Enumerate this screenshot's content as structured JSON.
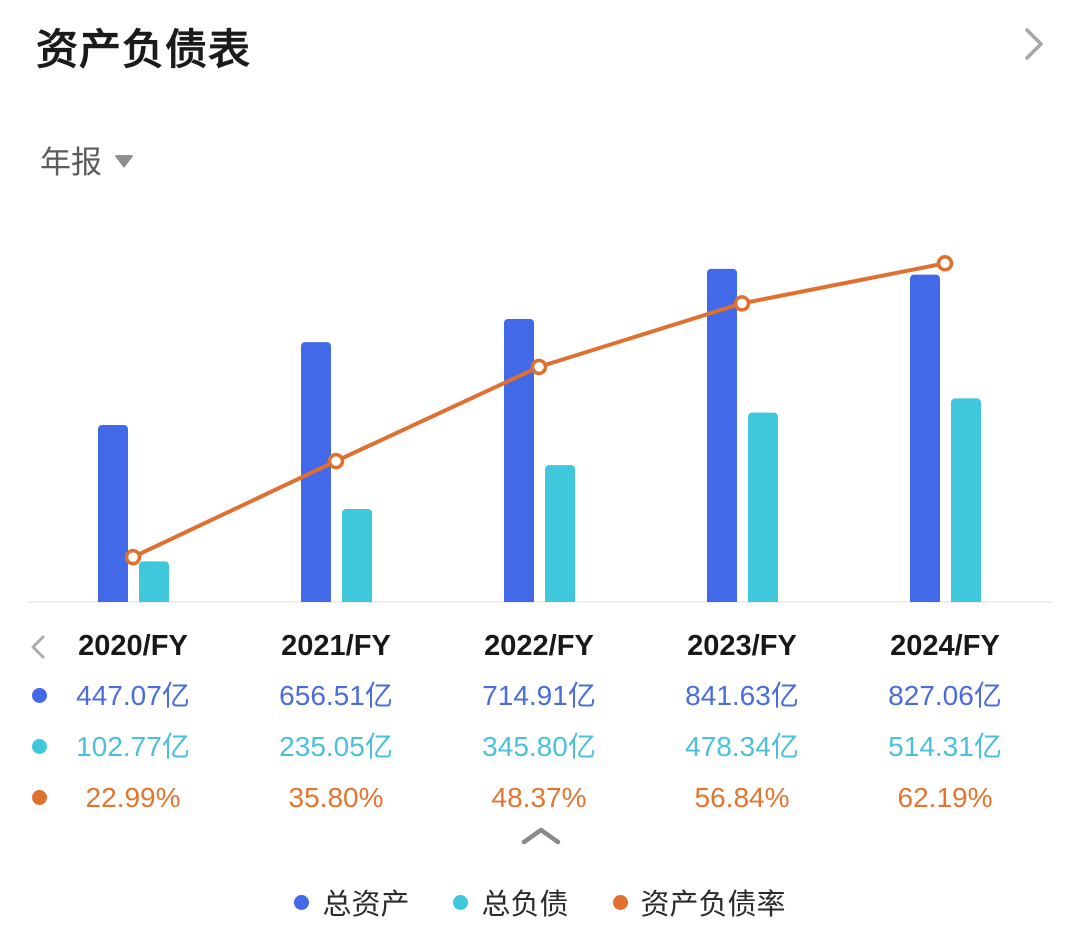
{
  "header": {
    "title": "资产负债表",
    "detail_icon": "chevron-right"
  },
  "period": {
    "label": "年报",
    "dropdown_icon": "triangle-down"
  },
  "table": {
    "prev_icon": "chevron-left",
    "collapse_icon": "chevron-up",
    "year_color": "#181818"
  },
  "colors": {
    "background": "#ffffff",
    "title_text": "#1b1b1b",
    "period_text": "#5c5c5c",
    "icon_gray": "#a6a6a6",
    "collapse_gray": "#8a8a8a",
    "baseline": "#eaeaea",
    "legend_text": "#2b2b2b"
  },
  "chart_data": {
    "type": "combo-bar-line",
    "title": "",
    "xlabel": "",
    "ylabel": "",
    "grid": false,
    "legend_position": "bottom",
    "categories": [
      "2020/FY",
      "2021/FY",
      "2022/FY",
      "2023/FY",
      "2024/FY"
    ],
    "series": [
      {
        "name": "总资产",
        "type": "bar",
        "color": "#4169E8",
        "value_color": "#4A6CDE",
        "values": [
          447.07,
          656.51,
          714.91,
          841.63,
          827.06
        ],
        "labels": [
          "447.07亿",
          "656.51亿",
          "714.91亿",
          "841.63亿",
          "827.06亿"
        ]
      },
      {
        "name": "总负债",
        "type": "bar",
        "color": "#3FC8DC",
        "value_color": "#4BC0DB",
        "values": [
          102.77,
          235.05,
          345.8,
          478.34,
          514.31
        ],
        "labels": [
          "102.77亿",
          "235.05亿",
          "345.80亿",
          "478.34亿",
          "514.31亿"
        ]
      },
      {
        "name": "资产负债率",
        "type": "line",
        "color": "#DF7030",
        "value_color": "#E5752E",
        "values": [
          22.99,
          35.8,
          48.37,
          56.84,
          62.19
        ],
        "labels": [
          "22.99%",
          "35.80%",
          "48.37%",
          "56.84%",
          "62.19%"
        ]
      }
    ],
    "bar_axis": {
      "min": 0,
      "max": 960
    },
    "line_axis": {
      "min": 17,
      "max": 67.7
    }
  }
}
